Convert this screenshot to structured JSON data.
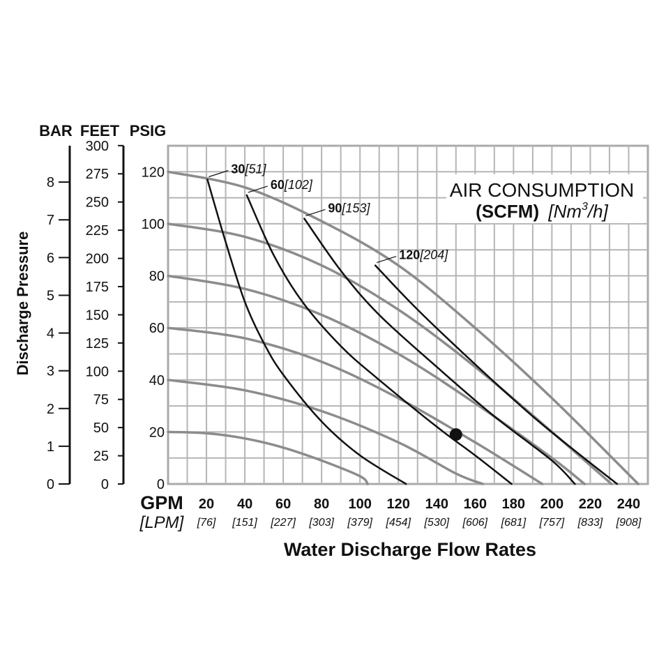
{
  "chart_data": {
    "type": "line",
    "title": "AIR CONSUMPTION",
    "legend_title": {
      "line1": "AIR CONSUMPTION",
      "unit_bold": "(SCFM)",
      "unit_italic_prefix": "[Nm",
      "unit_italic_sup": "3",
      "unit_italic_suffix": "/h]"
    },
    "xlabel": "Water Discharge Flow Rates",
    "ylabel": "Discharge Pressure",
    "x_unit_primary": "GPM",
    "x_unit_secondary": "[LPM]",
    "x_ticks": [
      {
        "gpm": 20,
        "label": "20",
        "lpm": "[76]"
      },
      {
        "gpm": 40,
        "label": "40",
        "lpm": "[151]"
      },
      {
        "gpm": 60,
        "label": "60",
        "lpm": "[227]"
      },
      {
        "gpm": 80,
        "label": "80",
        "lpm": "[303]"
      },
      {
        "gpm": 100,
        "label": "100",
        "lpm": "[379]"
      },
      {
        "gpm": 120,
        "label": "120",
        "lpm": "[454]"
      },
      {
        "gpm": 140,
        "label": "140",
        "lpm": "[530]"
      },
      {
        "gpm": 160,
        "label": "160",
        "lpm": "[606]"
      },
      {
        "gpm": 180,
        "label": "180",
        "lpm": "[681]"
      },
      {
        "gpm": 200,
        "label": "200",
        "lpm": "[757]"
      },
      {
        "gpm": 220,
        "label": "220",
        "lpm": "[833]"
      },
      {
        "gpm": 240,
        "label": "240",
        "lpm": "[908]"
      }
    ],
    "xlim": [
      0,
      250
    ],
    "ylim_psig": [
      0,
      130
    ],
    "y_axes": {
      "bar": {
        "header": "BAR",
        "ticks": [
          0,
          1,
          2,
          3,
          4,
          5,
          6,
          7,
          8
        ],
        "psig_per_unit": 14.5038
      },
      "feet": {
        "header": "FEET",
        "ticks": [
          0,
          25,
          50,
          75,
          100,
          125,
          150,
          175,
          200,
          225,
          250,
          275,
          300
        ],
        "psig_per_unit": 0.4335
      },
      "psig": {
        "header": "PSIG",
        "ticks": [
          0,
          20,
          40,
          60,
          80,
          100,
          120
        ]
      }
    },
    "pressure_curves": [
      {
        "name": "20 PSIG",
        "points": [
          [
            0,
            20
          ],
          [
            20,
            19.5
          ],
          [
            40,
            17.5
          ],
          [
            60,
            14
          ],
          [
            80,
            9
          ],
          [
            100,
            3
          ],
          [
            104,
            0
          ]
        ]
      },
      {
        "name": "40 PSIG",
        "points": [
          [
            0,
            40
          ],
          [
            40,
            36
          ],
          [
            80,
            28
          ],
          [
            120,
            16
          ],
          [
            150,
            4
          ],
          [
            164,
            0
          ]
        ]
      },
      {
        "name": "60 PSIG",
        "points": [
          [
            0,
            60
          ],
          [
            40,
            56
          ],
          [
            80,
            47
          ],
          [
            120,
            33
          ],
          [
            160,
            16
          ],
          [
            195,
            0
          ]
        ]
      },
      {
        "name": "80 PSIG",
        "points": [
          [
            0,
            80
          ],
          [
            40,
            75
          ],
          [
            80,
            65
          ],
          [
            120,
            50
          ],
          [
            160,
            31
          ],
          [
            200,
            10
          ],
          [
            217,
            0
          ]
        ]
      },
      {
        "name": "100 PSIG",
        "points": [
          [
            0,
            100
          ],
          [
            40,
            95
          ],
          [
            80,
            84
          ],
          [
            120,
            67
          ],
          [
            160,
            45
          ],
          [
            200,
            20
          ],
          [
            231,
            0
          ]
        ]
      },
      {
        "name": "120 PSIG",
        "points": [
          [
            0,
            120
          ],
          [
            40,
            114
          ],
          [
            80,
            101
          ],
          [
            120,
            84
          ],
          [
            160,
            60
          ],
          [
            200,
            33
          ],
          [
            245,
            0
          ]
        ]
      }
    ],
    "air_curves": [
      {
        "name": "30",
        "label_bold": "30",
        "label_italic": "[51]",
        "points": [
          [
            20.5,
            117
          ],
          [
            30,
            93
          ],
          [
            40,
            70
          ],
          [
            50,
            54
          ],
          [
            60,
            42
          ],
          [
            80,
            24
          ],
          [
            100,
            11
          ],
          [
            124,
            0
          ]
        ]
      },
      {
        "name": "60",
        "label_bold": "60",
        "label_italic": "[102]",
        "points": [
          [
            41,
            111
          ],
          [
            55,
            88
          ],
          [
            70,
            70
          ],
          [
            90,
            53
          ],
          [
            110,
            40
          ],
          [
            140,
            22
          ],
          [
            160,
            11
          ],
          [
            179,
            0
          ]
        ]
      },
      {
        "name": "90",
        "label_bold": "90",
        "label_italic": "[153]",
        "points": [
          [
            71,
            102
          ],
          [
            90,
            82
          ],
          [
            110,
            65
          ],
          [
            140,
            45
          ],
          [
            170,
            26
          ],
          [
            200,
            9
          ],
          [
            212,
            0
          ]
        ]
      },
      {
        "name": "120",
        "label_bold": "120",
        "label_italic": "[204]",
        "points": [
          [
            108,
            84
          ],
          [
            130,
            67
          ],
          [
            160,
            46
          ],
          [
            190,
            26
          ],
          [
            215,
            11
          ],
          [
            234,
            0
          ]
        ]
      }
    ],
    "operating_point": {
      "gpm": 150,
      "psig": 19
    }
  }
}
